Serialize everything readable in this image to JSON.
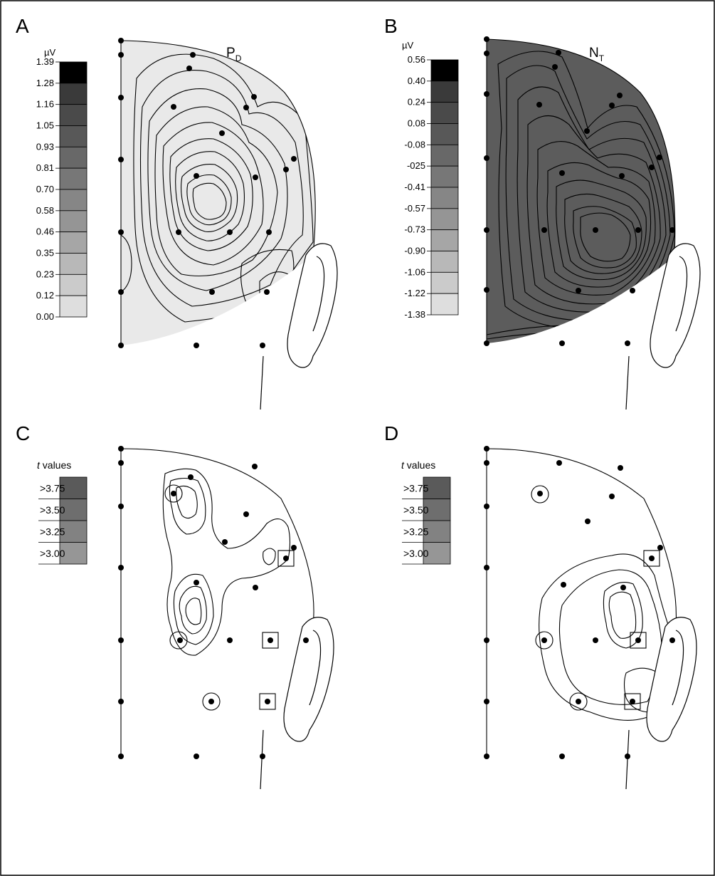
{
  "panels": [
    {
      "letter": "A",
      "title": "P",
      "title_sub": "D",
      "unit": "µV",
      "scale_ticks": [
        "1.39",
        "1.28",
        "1.16",
        "1.05",
        "0.93",
        "0.81",
        "0.70",
        "0.58",
        "0.46",
        "0.35",
        "0.23",
        "0.12",
        "0.00"
      ]
    },
    {
      "letter": "B",
      "title": "N",
      "title_sub": "T",
      "unit": "µV",
      "scale_ticks": [
        "0.56",
        "0.40",
        "0.24",
        "0.08",
        "-0.08",
        "-025",
        "-0.41",
        "-0.57",
        "-0.73",
        "-0.90",
        "-1.06",
        "-1.22",
        "-1.38"
      ]
    },
    {
      "letter": "C",
      "legend_title_italic": "t",
      "legend_title_rest": " values",
      "legend_ticks": [
        ">3.75",
        ">3.50",
        ">3.25",
        ">3.00"
      ]
    },
    {
      "letter": "D",
      "legend_title_italic": "t",
      "legend_title_rest": " values",
      "legend_ticks": [
        ">3.75",
        ">3.50",
        ">3.25",
        ">3.00"
      ]
    }
  ],
  "colors": {
    "scale_a": [
      "#000000",
      "#3a3a3a",
      "#4a4a4a",
      "#585858",
      "#686868",
      "#777777",
      "#868686",
      "#959595",
      "#a6a6a6",
      "#b8b8b8",
      "#cbcbcb",
      "#dedede",
      "#f0f0f0"
    ],
    "scale_b": [
      "#000000",
      "#3a3a3a",
      "#4a4a4a",
      "#585858",
      "#686868",
      "#777777",
      "#868686",
      "#959595",
      "#a6a6a6",
      "#b8b8b8",
      "#cbcbcb",
      "#dedede",
      "#f0f0f0"
    ],
    "t_scale": [
      "#5a5a5a",
      "#6e6e6e",
      "#828282",
      "#969696"
    ]
  }
}
